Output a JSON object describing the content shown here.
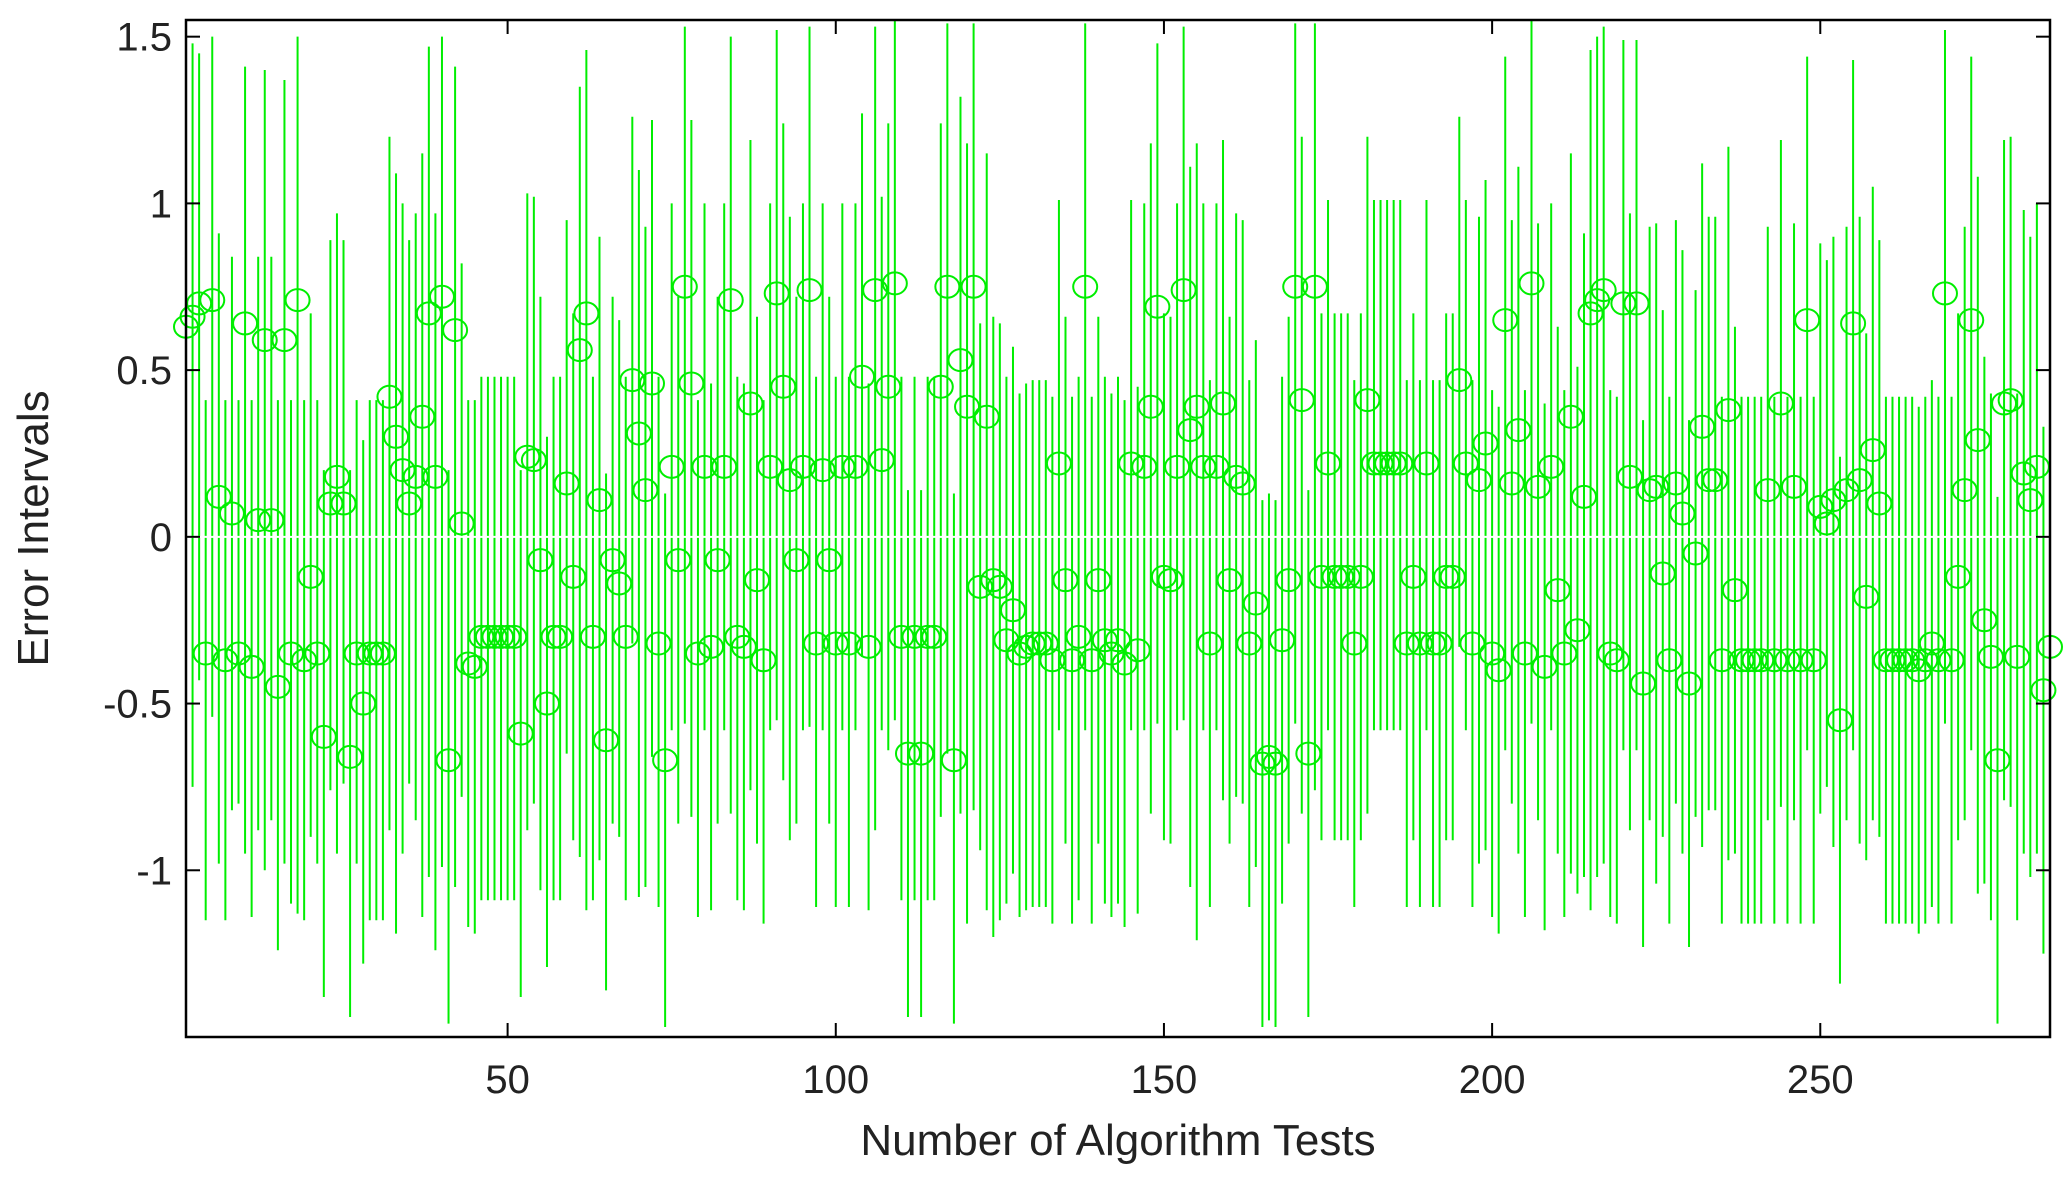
{
  "chart_data": {
    "type": "scatter",
    "subtype": "errorbar",
    "title": "",
    "xlabel": "Number of Algorithm Tests",
    "ylabel": "Error Intervals",
    "xlim": [
      1,
      285
    ],
    "ylim": [
      -1.5,
      1.55
    ],
    "xticks": [
      50,
      100,
      150,
      200,
      250
    ],
    "xtick_labels": [
      "50",
      "100",
      "150",
      "200",
      "250"
    ],
    "yticks": [
      -1,
      -0.5,
      0,
      0.5,
      1,
      1.5
    ],
    "ytick_labels": [
      "-1",
      "-0.5",
      "0",
      "0.5",
      "1",
      "1.5"
    ],
    "grid": false,
    "legend": "none",
    "zero_line": true,
    "zero_line_color": "#ffffff",
    "series": [
      {
        "color": "#00ee00",
        "marker": "circle",
        "x": [
          1,
          2,
          3,
          4,
          5,
          6,
          7,
          8,
          9,
          10,
          11,
          12,
          13,
          14,
          15,
          16,
          17,
          18,
          19,
          20,
          21,
          22,
          23,
          24,
          25,
          26,
          27,
          28,
          29,
          30,
          31,
          32,
          33,
          34,
          35,
          36,
          37,
          38,
          39,
          40,
          41,
          42,
          43,
          44,
          45,
          46,
          47,
          48,
          49,
          50,
          51,
          52,
          53,
          54,
          55,
          56,
          57,
          58,
          59,
          60,
          61,
          62,
          63,
          64,
          65,
          66,
          67,
          68,
          69,
          70,
          71,
          72,
          73,
          74,
          75,
          76,
          77,
          78,
          79,
          80,
          81,
          82,
          83,
          84,
          85,
          86,
          87,
          88,
          89,
          90,
          91,
          92,
          93,
          94,
          95,
          96,
          97,
          98,
          99,
          100,
          101,
          102,
          103,
          104,
          105,
          106,
          107,
          108,
          109,
          110,
          111,
          112,
          113,
          114,
          115,
          116,
          117,
          118,
          119,
          120,
          121,
          122,
          123,
          124,
          125,
          126,
          127,
          128,
          129,
          130,
          131,
          132,
          133,
          134,
          135,
          136,
          137,
          138,
          139,
          140,
          141,
          142,
          143,
          144,
          145,
          146,
          147,
          148,
          149,
          150,
          151,
          152,
          153,
          154,
          155,
          156,
          157,
          158,
          159,
          160,
          161,
          162,
          163,
          164,
          165,
          166,
          167,
          168,
          169,
          170,
          171,
          172,
          173,
          174,
          175,
          176,
          177,
          178,
          179,
          180,
          181,
          182,
          183,
          184,
          185,
          186,
          187,
          188,
          189,
          190,
          191,
          192,
          193,
          194,
          195,
          196,
          197,
          198,
          199,
          200,
          201,
          202,
          203,
          204,
          205,
          206,
          207,
          208,
          209,
          210,
          211,
          212,
          213,
          214,
          215,
          216,
          217,
          218,
          219,
          220,
          221,
          222,
          223,
          224,
          225,
          226,
          227,
          228,
          229,
          230,
          231,
          232,
          233,
          234,
          235,
          236,
          237,
          238,
          239,
          240,
          241,
          242,
          243,
          244,
          245,
          246,
          247,
          248,
          249,
          250,
          251,
          252,
          253,
          254,
          255,
          256,
          257,
          258,
          259,
          260,
          261,
          262,
          263,
          264,
          265,
          266,
          267,
          268,
          269,
          270,
          271,
          272,
          273,
          274,
          275,
          276,
          277,
          278,
          279,
          280,
          281,
          282,
          283,
          284,
          285
        ],
        "y": [
          0.63,
          0.66,
          0.7,
          -0.35,
          0.71,
          0.12,
          -0.37,
          0.07,
          -0.35,
          0.64,
          -0.39,
          0.05,
          0.59,
          0.05,
          -0.45,
          0.59,
          -0.35,
          0.71,
          -0.37,
          -0.12,
          -0.35,
          -0.6,
          0.1,
          0.18,
          0.1,
          -0.66,
          -0.35,
          -0.5,
          -0.35,
          -0.35,
          -0.35,
          0.42,
          0.3,
          0.2,
          0.1,
          0.18,
          0.36,
          0.67,
          0.18,
          0.72,
          -0.67,
          0.62,
          0.04,
          -0.38,
          -0.39,
          -0.3,
          -0.3,
          -0.3,
          -0.3,
          -0.3,
          -0.3,
          -0.59,
          0.24,
          0.23,
          -0.07,
          -0.5,
          -0.3,
          -0.3,
          0.16,
          -0.12,
          0.56,
          0.67,
          -0.3,
          0.11,
          -0.61,
          -0.07,
          -0.14,
          -0.3,
          0.47,
          0.31,
          0.14,
          0.46,
          -0.32,
          -0.67,
          0.21,
          -0.07,
          0.75,
          0.46,
          -0.35,
          0.21,
          -0.33,
          -0.07,
          0.21,
          0.71,
          -0.3,
          -0.33,
          0.4,
          -0.13,
          -0.37,
          0.21,
          0.73,
          0.45,
          0.17,
          -0.07,
          0.21,
          0.74,
          -0.32,
          0.2,
          -0.07,
          -0.32,
          0.21,
          -0.32,
          0.21,
          0.48,
          -0.33,
          0.74,
          0.23,
          0.45,
          0.76,
          -0.3,
          -0.65,
          -0.3,
          -0.65,
          -0.3,
          -0.3,
          0.45,
          0.75,
          -0.67,
          0.53,
          0.39,
          0.75,
          -0.15,
          0.36,
          -0.13,
          -0.15,
          -0.31,
          -0.22,
          -0.35,
          -0.33,
          -0.32,
          -0.32,
          -0.32,
          -0.37,
          0.22,
          -0.13,
          -0.37,
          -0.3,
          0.75,
          -0.37,
          -0.13,
          -0.31,
          -0.35,
          -0.31,
          -0.38,
          0.22,
          -0.34,
          0.21,
          0.39,
          0.69,
          -0.12,
          -0.13,
          0.21,
          0.74,
          0.32,
          0.39,
          0.21,
          -0.32,
          0.21,
          0.4,
          -0.13,
          0.18,
          0.16,
          -0.32,
          -0.2,
          -0.68,
          -0.66,
          -0.68,
          -0.31,
          -0.13,
          0.75,
          0.41,
          -0.65,
          0.75,
          -0.12,
          0.22,
          -0.12,
          -0.12,
          -0.12,
          -0.32,
          -0.12,
          0.41,
          0.22,
          0.22,
          0.22,
          0.22,
          0.22,
          -0.32,
          -0.12,
          -0.32,
          0.22,
          -0.32,
          -0.32,
          -0.12,
          -0.12,
          0.47,
          0.22,
          -0.32,
          0.17,
          0.28,
          -0.35,
          -0.4,
          0.65,
          0.16,
          0.32,
          -0.35,
          0.76,
          0.15,
          -0.39,
          0.21,
          -0.16,
          -0.35,
          0.36,
          -0.28,
          0.12,
          0.67,
          0.71,
          0.74,
          -0.35,
          -0.37,
          0.7,
          0.18,
          0.7,
          -0.44,
          0.14,
          0.15,
          -0.11,
          -0.37,
          0.16,
          0.07,
          -0.44,
          -0.05,
          0.33,
          0.17,
          0.17,
          -0.37,
          0.38,
          -0.16,
          -0.37,
          -0.37,
          -0.37,
          -0.37,
          0.14,
          -0.37,
          0.4,
          -0.37,
          0.15,
          -0.37,
          0.65,
          -0.37,
          0.09,
          0.04,
          0.11,
          -0.55,
          0.14,
          0.64,
          0.17,
          -0.18,
          0.26,
          0.1,
          -0.37,
          -0.37,
          -0.37,
          -0.37,
          -0.37,
          -0.4,
          -0.37,
          -0.32,
          -0.37,
          0.73,
          -0.37,
          -0.12,
          0.14,
          0.65,
          0.29,
          -0.25,
          -0.36,
          -0.67,
          0.4,
          0.41,
          -0.36,
          0.19,
          0.11,
          0.21,
          -0.46,
          -0.33
        ],
        "error_lower": [
          -0.11,
          -0.75,
          -0.43,
          -1.15,
          -0.54,
          -0.98,
          -1.15,
          -0.82,
          -0.8,
          -0.95,
          -1.14,
          -0.88,
          -1.0,
          -0.85,
          -1.24,
          -0.98,
          -1.1,
          -1.13,
          -1.15,
          -0.9,
          -0.98,
          -1.38,
          -0.76,
          -0.95,
          -0.74,
          -1.44,
          -0.98,
          -1.28,
          -1.15,
          -1.15,
          -1.15,
          -0.88,
          -1.19,
          -0.95,
          -0.74,
          -0.85,
          -1.14,
          -1.02,
          -1.24,
          -0.99,
          -1.46,
          -1.05,
          -0.78,
          -1.17,
          -1.19,
          -1.09,
          -1.09,
          -1.09,
          -1.09,
          -1.09,
          -1.09,
          -1.38,
          -0.88,
          -0.8,
          -1.06,
          -1.29,
          -1.09,
          -1.09,
          -0.65,
          -0.91,
          -0.96,
          -1.12,
          -1.09,
          -0.97,
          -1.36,
          -0.86,
          -0.9,
          -1.09,
          -0.32,
          -1.08,
          -1.05,
          -0.66,
          -1.11,
          -1.47,
          -0.58,
          -0.86,
          -0.56,
          -0.84,
          -1.14,
          -0.58,
          -1.12,
          -0.86,
          -0.58,
          -0.83,
          -1.09,
          -1.12,
          -0.76,
          -0.92,
          -1.16,
          -0.58,
          -0.55,
          -0.73,
          -0.91,
          -0.86,
          -0.58,
          -0.57,
          -1.11,
          -0.58,
          -0.86,
          -1.11,
          -0.58,
          -1.11,
          -0.58,
          -0.36,
          -1.12,
          -0.88,
          -0.58,
          -0.64,
          -0.55,
          -1.09,
          -1.44,
          -1.09,
          -1.44,
          -1.09,
          -1.09,
          -0.84,
          -0.65,
          -1.46,
          -0.83,
          -1.16,
          -0.82,
          -0.94,
          -1.12,
          -1.2,
          -1.15,
          -1.1,
          -1.01,
          -1.14,
          -1.12,
          -1.11,
          -1.11,
          -1.11,
          -1.16,
          -0.58,
          -0.92,
          -1.16,
          -1.09,
          -0.58,
          -1.16,
          -0.92,
          -1.1,
          -1.14,
          -1.1,
          -1.17,
          -0.58,
          -1.13,
          -0.58,
          -0.83,
          -0.56,
          -0.91,
          -0.92,
          -0.58,
          -0.55,
          -1.05,
          -1.21,
          -0.58,
          -1.11,
          -0.58,
          -0.79,
          -0.92,
          -0.78,
          -0.8,
          -1.11,
          -0.99,
          -1.47,
          -1.45,
          -1.47,
          -1.1,
          -0.92,
          -0.56,
          -0.83,
          -1.44,
          -0.76,
          -0.91,
          -0.58,
          -0.91,
          -0.91,
          -0.91,
          -1.11,
          -0.91,
          -0.83,
          -0.58,
          -0.58,
          -0.58,
          -0.58,
          -0.58,
          -1.11,
          -0.91,
          -1.11,
          -0.58,
          -1.11,
          -1.11,
          -0.91,
          -0.91,
          -0.33,
          -0.58,
          -1.11,
          -0.98,
          -0.94,
          -1.14,
          -1.19,
          -0.64,
          -0.8,
          -0.95,
          -1.14,
          -0.56,
          -0.85,
          -1.18,
          -0.58,
          -0.95,
          -1.14,
          -1.01,
          -1.07,
          -1.02,
          -1.12,
          -1.02,
          -0.98,
          -1.14,
          -1.16,
          -0.64,
          -0.88,
          -0.64,
          -1.23,
          -0.85,
          -1.04,
          -0.9,
          -1.16,
          -0.8,
          -0.95,
          -1.23,
          -0.84,
          -0.93,
          -0.82,
          -0.82,
          -1.16,
          -0.97,
          -0.95,
          -1.16,
          -1.16,
          -1.16,
          -1.16,
          -0.85,
          -1.16,
          -0.81,
          -1.16,
          -0.85,
          -1.16,
          -0.64,
          -1.16,
          -0.83,
          -0.75,
          -0.93,
          -1.34,
          -0.85,
          -0.64,
          -0.92,
          -0.97,
          -0.85,
          -0.9,
          -1.16,
          -1.16,
          -1.16,
          -1.16,
          -1.16,
          -1.19,
          -1.16,
          -1.11,
          -1.16,
          -0.56,
          -1.16,
          -0.91,
          -0.85,
          -0.64,
          -1.07,
          -1.04,
          -1.15,
          -1.46,
          -0.79,
          -0.81,
          -1.15,
          -0.95,
          -1.02,
          -0.95,
          -1.25,
          -1.12
        ],
        "error_upper": [
          1.42,
          1.48,
          1.45,
          0.41,
          1.5,
          0.91,
          0.41,
          0.84,
          0.41,
          1.41,
          0.41,
          0.84,
          1.4,
          0.84,
          0.41,
          1.37,
          0.41,
          1.5,
          0.41,
          0.67,
          0.41,
          0.2,
          0.89,
          0.97,
          0.89,
          0.2,
          0.41,
          0.29,
          0.41,
          0.41,
          0.41,
          1.2,
          1.09,
          1.0,
          0.89,
          0.97,
          1.15,
          1.47,
          0.97,
          1.5,
          0.2,
          1.41,
          0.82,
          0.41,
          0.41,
          0.48,
          0.48,
          0.48,
          0.48,
          0.48,
          0.48,
          0.2,
          1.03,
          1.02,
          0.72,
          0.3,
          0.48,
          0.48,
          0.95,
          0.67,
          1.35,
          1.46,
          0.48,
          0.9,
          0.19,
          0.72,
          0.65,
          0.48,
          1.26,
          1.1,
          0.93,
          1.25,
          0.48,
          0.13,
          1.0,
          0.72,
          1.53,
          1.25,
          0.41,
          1.0,
          0.46,
          0.72,
          1.0,
          1.5,
          0.48,
          0.46,
          1.19,
          0.66,
          0.41,
          1.0,
          1.52,
          1.24,
          0.96,
          0.72,
          1.0,
          1.53,
          0.48,
          1.0,
          0.72,
          0.48,
          1.0,
          0.48,
          1.0,
          1.27,
          0.46,
          1.53,
          1.02,
          1.24,
          1.55,
          0.48,
          0.14,
          0.48,
          0.14,
          0.48,
          0.48,
          1.24,
          1.54,
          0.13,
          1.32,
          1.18,
          1.54,
          0.64,
          1.15,
          0.66,
          0.64,
          0.48,
          0.57,
          0.43,
          0.46,
          0.47,
          0.47,
          0.47,
          0.42,
          1.01,
          0.66,
          0.42,
          0.48,
          1.54,
          0.42,
          0.66,
          0.48,
          0.43,
          0.48,
          0.41,
          1.01,
          0.45,
          1.0,
          1.18,
          1.48,
          0.67,
          0.66,
          1.0,
          1.53,
          1.11,
          1.18,
          1.0,
          0.47,
          1.0,
          1.19,
          0.66,
          0.97,
          0.95,
          0.47,
          0.59,
          0.11,
          0.13,
          0.11,
          0.48,
          0.66,
          1.54,
          1.2,
          0.14,
          1.54,
          0.67,
          1.01,
          0.67,
          0.67,
          0.67,
          0.47,
          0.67,
          1.2,
          1.01,
          1.01,
          1.01,
          1.01,
          1.01,
          0.47,
          0.67,
          0.47,
          1.01,
          0.47,
          0.47,
          0.67,
          0.67,
          1.26,
          1.01,
          0.47,
          0.96,
          1.07,
          0.44,
          0.39,
          1.44,
          0.95,
          1.11,
          0.44,
          1.55,
          0.94,
          0.4,
          1.0,
          0.63,
          0.44,
          1.15,
          0.51,
          0.91,
          1.46,
          1.5,
          1.53,
          0.44,
          0.42,
          1.49,
          0.97,
          1.49,
          0.35,
          0.93,
          0.94,
          0.68,
          0.42,
          0.95,
          0.86,
          0.35,
          0.74,
          1.12,
          0.96,
          0.96,
          0.42,
          1.17,
          0.63,
          0.42,
          0.42,
          0.42,
          0.42,
          0.93,
          0.42,
          1.19,
          0.42,
          0.94,
          0.42,
          1.44,
          0.42,
          0.88,
          0.83,
          0.9,
          0.24,
          0.93,
          1.43,
          0.96,
          0.61,
          1.05,
          0.89,
          0.42,
          0.42,
          0.42,
          0.42,
          0.42,
          0.39,
          0.42,
          0.47,
          0.42,
          1.52,
          0.42,
          0.67,
          0.93,
          1.44,
          1.08,
          0.54,
          0.43,
          0.12,
          1.19,
          1.2,
          0.43,
          0.98,
          0.9,
          1.0,
          0.33,
          0.46
        ]
      }
    ]
  }
}
